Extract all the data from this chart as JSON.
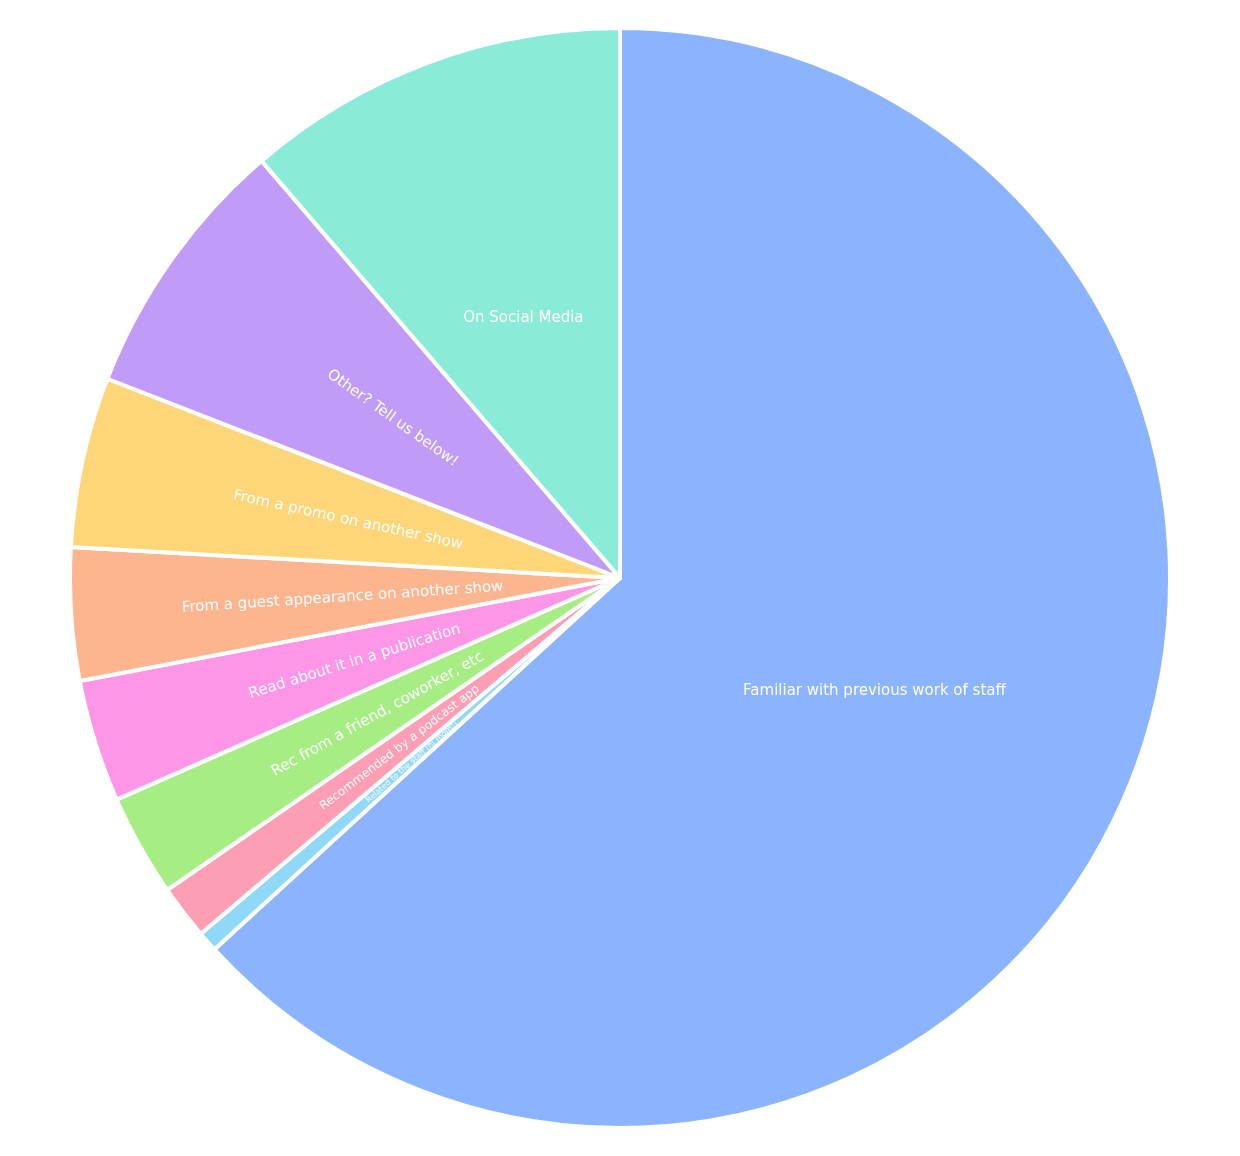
{
  "chart_data": {
    "type": "pie",
    "categories": [
      "Familiar with previous work of staff",
      "Related to the staff (hi mom!)",
      "Recommended by a podcast app",
      "Rec from a friend, coworker, etc",
      "Read about it in a publication",
      "From a guest appearance on another show",
      "From a promo on another show",
      "Other? Tell us below!",
      "On Social Media"
    ],
    "values": [
      63.2,
      0.6,
      1.6,
      3.0,
      3.6,
      3.9,
      5.0,
      7.8,
      11.3
    ],
    "colors": [
      "#8cb3fe",
      "#8fd8f8",
      "#fe9eb4",
      "#a6ee84",
      "#fe96e8",
      "#fdb58f",
      "#fdd67a",
      "#c09cf8",
      "#8aebd7"
    ],
    "legend": false
  }
}
